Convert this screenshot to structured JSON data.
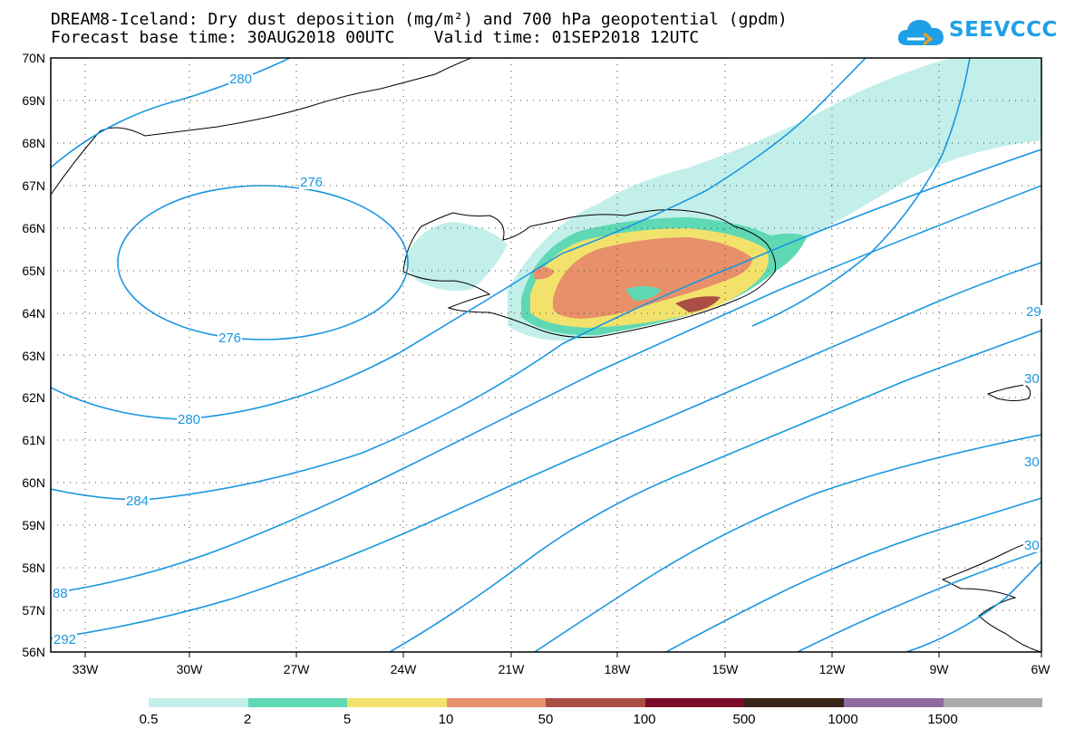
{
  "header": {
    "line1": "DREAM8-Iceland: Dry dust deposition (mg/m²) and 700 hPa geopotential (gpdm)",
    "line2": "Forecast base time: 30AUG2018 00UTC    Valid time: 01SEP2018 12UTC"
  },
  "logo": {
    "text": "SEEVCCC",
    "color": "#1fa0e6"
  },
  "map": {
    "lat_labels": [
      "70N",
      "69N",
      "68N",
      "67N",
      "66N",
      "65N",
      "64N",
      "63N",
      "62N",
      "61N",
      "60N",
      "59N",
      "58N",
      "57N",
      "56N"
    ],
    "lon_labels": [
      "33W",
      "30W",
      "27W",
      "24W",
      "21W",
      "18W",
      "15W",
      "12W",
      "9W",
      "6W"
    ],
    "contour_labels": [
      "280",
      "276",
      "276",
      "280",
      "284",
      "88",
      "292",
      "29",
      "30",
      "30",
      "30"
    ],
    "contour_color": "#1a97e0"
  },
  "legend": {
    "colors": [
      "#c2efea",
      "#5fd9b4",
      "#f2e26c",
      "#e8906a",
      "#ab4e44",
      "#7d0c2a",
      "#3a2418",
      "#8f6aa0",
      "#aaaaaa"
    ],
    "labels": [
      "0.5",
      "2",
      "5",
      "10",
      "50",
      "100",
      "500",
      "1000",
      "1500"
    ]
  }
}
